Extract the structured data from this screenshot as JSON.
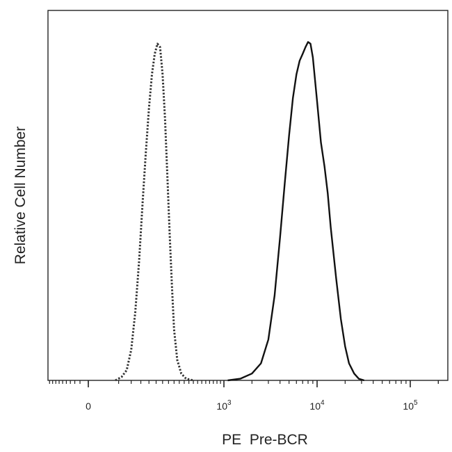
{
  "chart_data": {
    "type": "line",
    "title": "",
    "xlabel": "PE  Pre-BCR",
    "ylabel": "Relative Cell Number",
    "x_scale": "biexponential",
    "xlim": [
      -300,
      200000
    ],
    "ylim": [
      0,
      1.0
    ],
    "grid": false,
    "legend": "none",
    "x_ticks": [
      {
        "value": 0,
        "label": "0",
        "exp": ""
      },
      {
        "value": 1000,
        "label": "10",
        "exp": "3"
      },
      {
        "value": 10000,
        "label": "10",
        "exp": "4"
      },
      {
        "value": 100000,
        "label": "10",
        "exp": "5"
      }
    ],
    "series": [
      {
        "style": "dotted",
        "color": "#333333",
        "x": [
          40,
          60,
          80,
          100,
          120,
          140,
          160,
          180,
          200,
          220,
          240,
          260,
          280,
          300,
          320,
          340,
          360,
          380,
          400,
          430,
          470,
          520,
          600
        ],
        "y": [
          0.0,
          0.01,
          0.03,
          0.09,
          0.2,
          0.35,
          0.52,
          0.67,
          0.8,
          0.9,
          0.96,
          0.99,
          0.98,
          0.9,
          0.77,
          0.6,
          0.43,
          0.28,
          0.15,
          0.06,
          0.02,
          0.005,
          0.0
        ]
      },
      {
        "style": "solid",
        "color": "#111111",
        "x": [
          1100,
          1500,
          2000,
          2500,
          3000,
          3500,
          4000,
          4500,
          5000,
          5500,
          6000,
          6500,
          7000,
          7500,
          8000,
          8500,
          9000,
          10000,
          11000,
          12000,
          13000,
          14000,
          16000,
          18000,
          20000,
          22000,
          25000,
          28000,
          32000
        ],
        "y": [
          0.0,
          0.005,
          0.02,
          0.05,
          0.12,
          0.25,
          0.42,
          0.58,
          0.72,
          0.83,
          0.9,
          0.94,
          0.96,
          0.98,
          0.995,
          0.99,
          0.95,
          0.82,
          0.7,
          0.63,
          0.55,
          0.45,
          0.3,
          0.18,
          0.1,
          0.05,
          0.02,
          0.005,
          0.0
        ]
      }
    ]
  }
}
